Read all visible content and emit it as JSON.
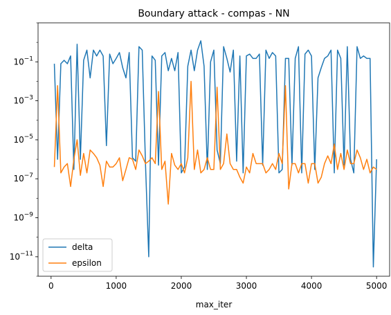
{
  "chart_data": {
    "type": "line",
    "title": "Boundary attack - compas - NN",
    "xlabel": "max_iter",
    "ylabel": "",
    "yscale": "log",
    "xlim": [
      -200,
      5200
    ],
    "ylim": [
      1e-12,
      10
    ],
    "x_ticks": [
      0,
      1000,
      2000,
      3000,
      4000,
      5000
    ],
    "x_tick_labels": [
      "0",
      "1000",
      "2000",
      "3000",
      "4000",
      "5000"
    ],
    "y_tick_exponents": [
      -11,
      -9,
      -7,
      -5,
      -3,
      -1
    ],
    "grid": false,
    "legend_position": "lower left",
    "x": [
      50,
      100,
      150,
      200,
      250,
      300,
      350,
      400,
      450,
      500,
      550,
      600,
      650,
      700,
      750,
      800,
      850,
      900,
      950,
      1000,
      1050,
      1100,
      1150,
      1200,
      1250,
      1300,
      1350,
      1400,
      1450,
      1500,
      1550,
      1600,
      1650,
      1700,
      1750,
      1800,
      1850,
      1900,
      1950,
      2000,
      2050,
      2100,
      2150,
      2200,
      2250,
      2300,
      2350,
      2400,
      2450,
      2500,
      2550,
      2600,
      2650,
      2700,
      2750,
      2800,
      2850,
      2900,
      2950,
      3000,
      3050,
      3100,
      3150,
      3200,
      3250,
      3300,
      3350,
      3400,
      3450,
      3500,
      3550,
      3600,
      3650,
      3700,
      3750,
      3800,
      3850,
      3900,
      3950,
      4000,
      4050,
      4100,
      4150,
      4200,
      4250,
      4300,
      4350,
      4400,
      4450,
      4500,
      4550,
      4600,
      4650,
      4700,
      4750,
      4800,
      4850,
      4900,
      4950,
      5000
    ],
    "series": [
      {
        "name": "delta",
        "color": "#1f77b4",
        "values": [
          0.08,
          1e-06,
          0.08,
          0.12,
          0.08,
          0.2,
          3e-07,
          0.8,
          1e-06,
          0.12,
          0.4,
          0.015,
          0.4,
          0.2,
          0.4,
          0.2,
          5e-06,
          0.25,
          0.08,
          0.15,
          0.3,
          0.05,
          0.015,
          0.3,
          1.2e-06,
          8e-07,
          0.6,
          0.4,
          6e-07,
          1e-11,
          0.2,
          0.12,
          5e-07,
          0.2,
          0.3,
          0.035,
          0.15,
          0.035,
          0.3,
          2e-07,
          4e-07,
          0.06,
          0.4,
          0.035,
          0.4,
          1.2,
          0.06,
          3e-07,
          0.1,
          0.4,
          3e-06,
          6e-07,
          0.6,
          0.15,
          0.03,
          0.4,
          8e-07,
          0.2,
          2e-07,
          0.2,
          0.25,
          0.15,
          0.15,
          0.25,
          5e-07,
          0.4,
          0.15,
          0.3,
          0.2,
          2e-07,
          3e-07,
          0.15,
          0.15,
          5e-07,
          0.15,
          0.6,
          2e-07,
          0.25,
          0.4,
          0.2,
          3e-07,
          0.015,
          0.05,
          0.15,
          0.2,
          0.4,
          2e-07,
          0.4,
          0.15,
          5e-07,
          0.6,
          1e-06,
          2e-07,
          0.6,
          0.15,
          0.2,
          0.15,
          0.15,
          3e-12,
          1e-06
        ]
      },
      {
        "name": "epsilon",
        "color": "#ff7f0e",
        "values": [
          4e-07,
          0.006,
          2e-07,
          4e-07,
          6e-07,
          4e-08,
          1e-06,
          1e-05,
          1.5e-07,
          2e-06,
          2e-07,
          3e-06,
          2e-06,
          1.2e-06,
          5e-07,
          4e-08,
          8e-07,
          4e-07,
          4e-07,
          6e-07,
          1.2e-06,
          8e-08,
          3e-07,
          1.2e-06,
          1e-06,
          3e-07,
          3e-06,
          1.5e-06,
          6e-07,
          8e-07,
          1.2e-06,
          6e-07,
          0.003,
          3e-07,
          8e-07,
          5e-09,
          2e-06,
          5e-07,
          3e-07,
          6e-07,
          2e-07,
          1.2e-06,
          0.01,
          3e-07,
          3e-06,
          2e-07,
          3e-07,
          1.2e-06,
          3e-07,
          3e-07,
          0.005,
          3e-07,
          6e-07,
          2e-05,
          6e-07,
          3e-07,
          3e-07,
          1.2e-07,
          6e-08,
          4e-07,
          2e-07,
          2e-06,
          6e-07,
          6e-07,
          6e-07,
          2e-07,
          3e-07,
          6e-07,
          3e-07,
          2e-06,
          6e-07,
          0.006,
          3e-08,
          6e-07,
          6e-07,
          2e-07,
          6e-07,
          6e-07,
          6e-08,
          6e-07,
          6e-07,
          6e-08,
          1.2e-07,
          6e-07,
          1.5e-06,
          6e-07,
          6e-06,
          3e-07,
          2e-06,
          3e-07,
          3e-06,
          6e-07,
          6e-07,
          3e-06,
          1.2e-06,
          3e-07,
          1e-06,
          2e-07,
          4e-07,
          3e-07
        ]
      }
    ]
  }
}
